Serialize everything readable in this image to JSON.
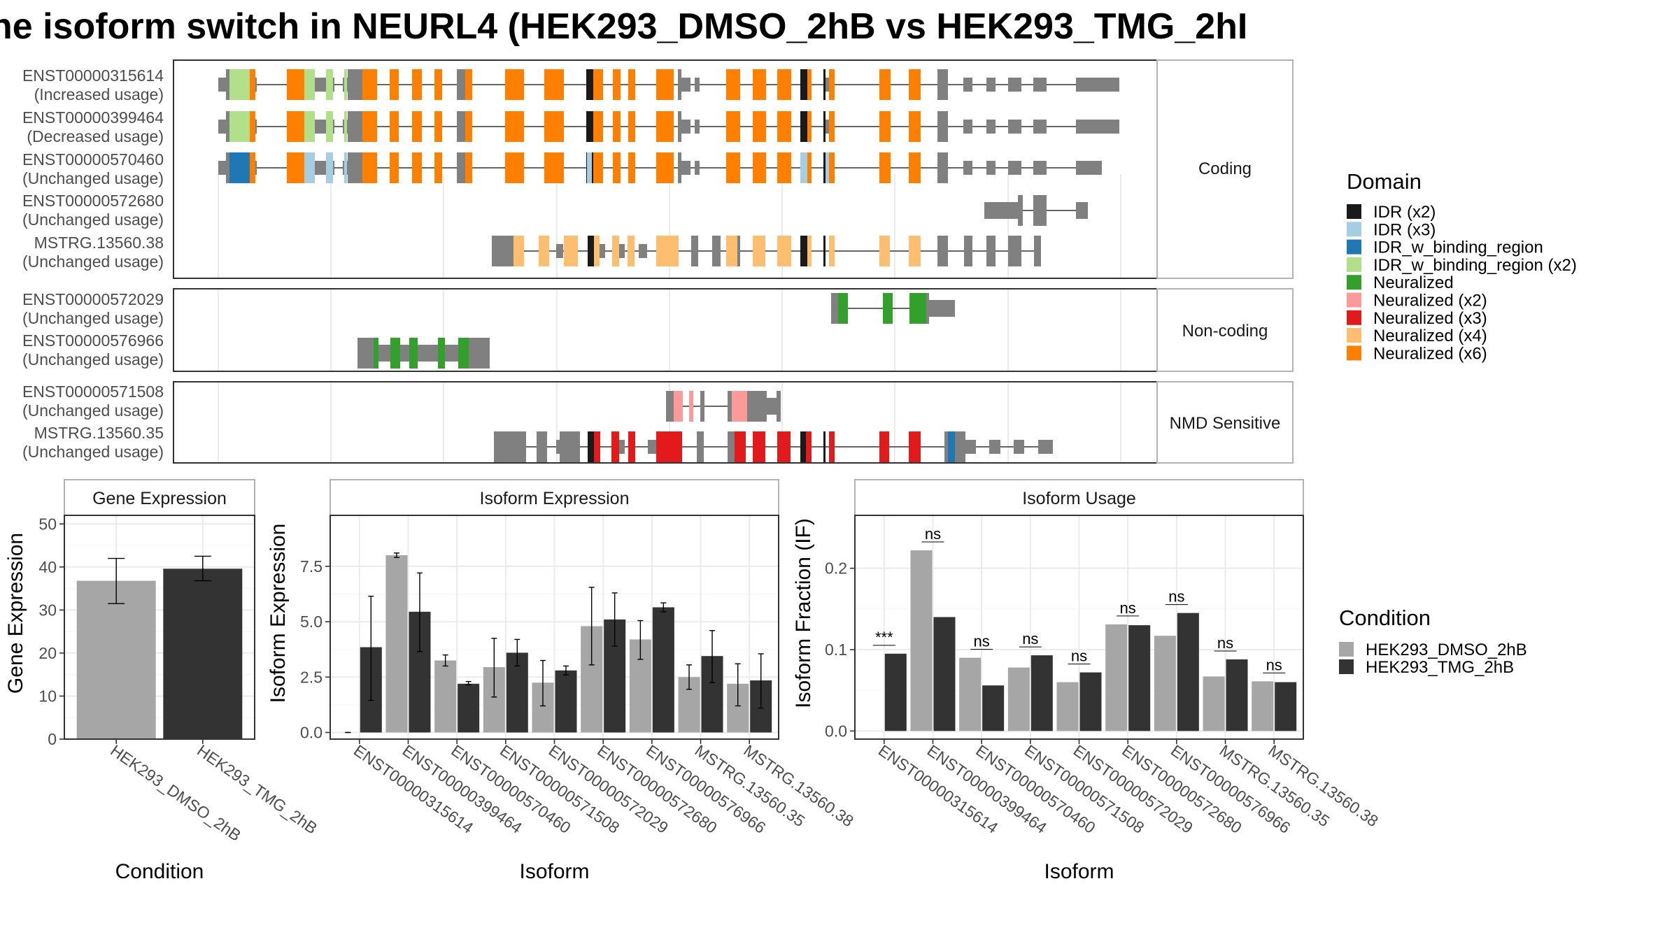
{
  "title": "ne isoform switch in NEURL4 (HEK293_DMSO_2hB vs HEK293_TMG_2hI",
  "structure": {
    "coding_label": "Coding",
    "noncoding_label": "Non-coding",
    "nmd_label": "NMD Sensitive",
    "coding": [
      {
        "id": "ENST00000315614",
        "usage": "(Increased usage)"
      },
      {
        "id": "ENST00000399464",
        "usage": "(Decreased usage)"
      },
      {
        "id": "ENST00000570460",
        "usage": "(Unchanged usage)"
      },
      {
        "id": "ENST00000572680",
        "usage": "(Unchanged usage)"
      },
      {
        "id": "MSTRG.13560.38",
        "usage": "(Unchanged usage)"
      }
    ],
    "noncoding": [
      {
        "id": "ENST00000572029",
        "usage": "(Unchanged usage)"
      },
      {
        "id": "ENST00000576966",
        "usage": "(Unchanged usage)"
      }
    ],
    "nmd": [
      {
        "id": "ENST00000571508",
        "usage": "(Unchanged usage)"
      },
      {
        "id": "MSTRG.13560.35",
        "usage": "(Unchanged usage)"
      }
    ]
  },
  "domain_legend": {
    "title": "Domain",
    "items": [
      {
        "label": "IDR (x2)",
        "color": "#1a1a1a"
      },
      {
        "label": "IDR (x3)",
        "color": "#a6cee3"
      },
      {
        "label": "IDR_w_binding_region",
        "color": "#1f78b4"
      },
      {
        "label": "IDR_w_binding_region (x2)",
        "color": "#b2df8a"
      },
      {
        "label": "Neuralized",
        "color": "#33a02c"
      },
      {
        "label": "Neuralized (x2)",
        "color": "#fb9a99"
      },
      {
        "label": "Neuralized (x3)",
        "color": "#e31a1c"
      },
      {
        "label": "Neuralized (x4)",
        "color": "#fdbf6f"
      },
      {
        "label": "Neuralized (x6)",
        "color": "#ff7f00"
      }
    ]
  },
  "condition_legend": {
    "title": "Condition",
    "items": [
      {
        "label": "HEK293_DMSO_2hB",
        "color": "#a6a6a6"
      },
      {
        "label": "HEK293_TMG_2hB",
        "color": "#333333"
      }
    ]
  },
  "chart_data": [
    {
      "type": "bar",
      "title": "Gene Expression",
      "xlabel": "Condition",
      "ylabel": "Gene Expression",
      "ylim": [
        0,
        52
      ],
      "yticks": [
        0,
        10,
        20,
        30,
        40,
        50
      ],
      "ytick_labels": [
        "0",
        "10",
        "20",
        "30",
        "40",
        "50"
      ],
      "categories": [
        "HEK293_DMSO_2hB",
        "HEK293_TMG_2hB"
      ],
      "values": [
        36.8,
        39.6
      ],
      "errors": [
        [
          31.5,
          42.0
        ],
        [
          36.8,
          42.5
        ]
      ]
    },
    {
      "type": "bar",
      "title": "Isoform Expression",
      "xlabel": "Isoform",
      "ylabel": "Isoform Expression",
      "ylim": [
        -0.3,
        9.8
      ],
      "yticks": [
        0,
        2.5,
        5,
        7.5
      ],
      "ytick_labels": [
        "0.0",
        "2.5",
        "5.0",
        "7.5"
      ],
      "categories": [
        "ENST00000315614",
        "ENST00000399464",
        "ENST00000570460",
        "ENST00000571508",
        "ENST00000572029",
        "ENST00000572680",
        "ENST00000576966",
        "MSTRG.13560.35",
        "MSTRG.13560.38"
      ],
      "series": [
        {
          "name": "HEK293_DMSO_2hB",
          "values": [
            0,
            8.0,
            3.25,
            2.95,
            2.25,
            4.8,
            4.2,
            2.5,
            2.2
          ],
          "errors": [
            [
              0,
              0
            ],
            [
              7.9,
              8.1
            ],
            [
              3.0,
              3.5
            ],
            [
              1.6,
              4.25
            ],
            [
              1.2,
              3.25
            ],
            [
              3.05,
              6.55
            ],
            [
              3.3,
              5.05
            ],
            [
              1.95,
              3.05
            ],
            [
              1.2,
              3.1
            ]
          ]
        },
        {
          "name": "HEK293_TMG_2hB",
          "values": [
            3.85,
            5.45,
            2.2,
            3.6,
            2.8,
            5.1,
            5.65,
            3.45,
            2.35
          ],
          "errors": [
            [
              1.45,
              6.15
            ],
            [
              3.65,
              7.2
            ],
            [
              2.15,
              2.3
            ],
            [
              3.0,
              4.2
            ],
            [
              2.6,
              3.0
            ],
            [
              3.9,
              6.3
            ],
            [
              5.45,
              5.85
            ],
            [
              2.25,
              4.6
            ],
            [
              1.1,
              3.55
            ]
          ]
        }
      ]
    },
    {
      "type": "bar",
      "title": "Isoform Usage",
      "xlabel": "Isoform",
      "ylabel": "Isoform Fraction (IF)",
      "ylim": [
        -0.01,
        0.265
      ],
      "yticks": [
        0,
        0.1,
        0.2
      ],
      "ytick_labels": [
        "0.0",
        "0.1",
        "0.2"
      ],
      "categories": [
        "ENST00000315614",
        "ENST00000399464",
        "ENST00000570460",
        "ENST00000571508",
        "ENST00000572029",
        "ENST00000572680",
        "ENST00000576966",
        "MSTRG.13560.35",
        "MSTRG.13560.38"
      ],
      "series": [
        {
          "name": "HEK293_DMSO_2hB",
          "values": [
            0.0,
            0.222,
            0.09,
            0.078,
            0.06,
            0.131,
            0.117,
            0.067,
            0.061
          ]
        },
        {
          "name": "HEK293_TMG_2hB",
          "values": [
            0.095,
            0.14,
            0.056,
            0.093,
            0.072,
            0.13,
            0.145,
            0.088,
            0.06
          ]
        }
      ],
      "significance": [
        "***",
        "ns",
        "ns",
        "ns",
        "ns",
        "ns",
        "ns",
        "ns",
        "ns"
      ]
    }
  ]
}
